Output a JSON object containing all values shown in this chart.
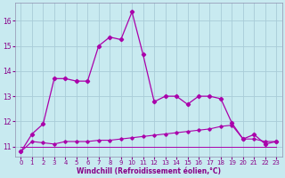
{
  "xlabel": "Windchill (Refroidissement éolien,°C)",
  "background_color": "#c8eaf0",
  "grid_color": "#a8ccd8",
  "line_color": "#aa00aa",
  "hours": [
    0,
    1,
    2,
    3,
    4,
    5,
    6,
    7,
    8,
    9,
    10,
    11,
    12,
    13,
    14,
    15,
    16,
    17,
    18,
    19,
    20,
    21,
    22,
    23
  ],
  "temp": [
    10.8,
    11.5,
    11.9,
    13.7,
    13.7,
    13.6,
    13.6,
    15.0,
    15.35,
    15.25,
    16.35,
    14.65,
    12.78,
    13.0,
    13.0,
    12.68,
    13.0,
    13.0,
    12.9,
    11.93,
    11.3,
    11.48,
    11.1,
    11.2
  ],
  "windchill": [
    10.8,
    11.2,
    11.15,
    11.1,
    11.2,
    11.2,
    11.2,
    11.25,
    11.25,
    11.3,
    11.35,
    11.4,
    11.45,
    11.5,
    11.55,
    11.6,
    11.65,
    11.7,
    11.8,
    11.85,
    11.3,
    11.3,
    11.2,
    11.2
  ],
  "flat": [
    11.0,
    11.0,
    11.0,
    11.0,
    11.0,
    11.0,
    11.0,
    11.0,
    11.0,
    11.0,
    11.0,
    11.0,
    11.0,
    11.0,
    11.0,
    11.0,
    11.0,
    11.0,
    11.0,
    11.0,
    11.0,
    11.0,
    11.0,
    11.0
  ],
  "ylim": [
    10.6,
    16.7
  ],
  "yticks": [
    11,
    12,
    13,
    14,
    15,
    16
  ],
  "xlim": [
    -0.5,
    23.5
  ],
  "xticks": [
    0,
    1,
    2,
    3,
    4,
    5,
    6,
    7,
    8,
    9,
    10,
    11,
    12,
    13,
    14,
    15,
    16,
    17,
    18,
    19,
    20,
    21,
    22,
    23
  ]
}
